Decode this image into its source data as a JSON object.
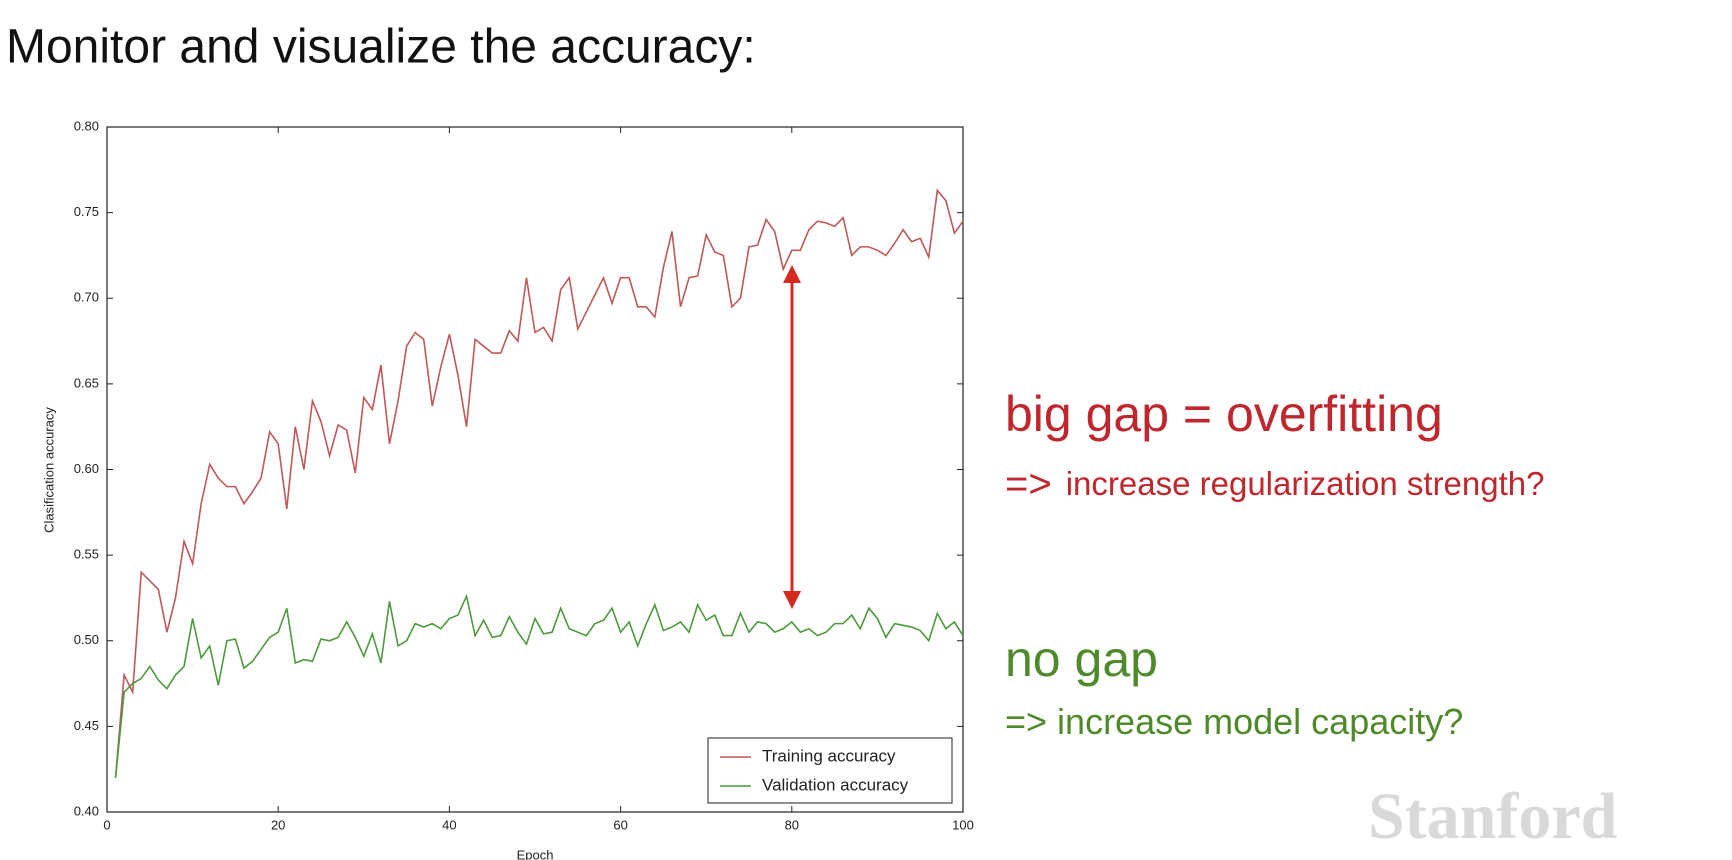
{
  "slide": {
    "heading": "Monitor and visualize the accuracy:",
    "notes": [
      {
        "title": "big gap = overfitting",
        "arrow": "=>",
        "text": "increase regularization strength?"
      },
      {
        "title": "no gap",
        "arrow": "=>",
        "text": "increase model capacity?"
      }
    ],
    "watermark": "Stanford"
  },
  "chart_data": {
    "type": "line",
    "xlabel": "Epoch",
    "ylabel": "Clasification accuracy",
    "x": [
      1,
      2,
      3,
      4,
      5,
      6,
      7,
      8,
      9,
      10,
      11,
      12,
      13,
      14,
      15,
      16,
      17,
      18,
      19,
      20,
      21,
      22,
      23,
      24,
      25,
      26,
      27,
      28,
      29,
      30,
      31,
      32,
      33,
      34,
      35,
      36,
      37,
      38,
      39,
      40,
      41,
      42,
      43,
      44,
      45,
      46,
      47,
      48,
      49,
      50,
      51,
      52,
      53,
      54,
      55,
      56,
      57,
      58,
      59,
      60,
      61,
      62,
      63,
      64,
      65,
      66,
      67,
      68,
      69,
      70,
      71,
      72,
      73,
      74,
      75,
      76,
      77,
      78,
      79,
      80,
      81,
      82,
      83,
      84,
      85,
      86,
      87,
      88,
      89,
      90,
      91,
      92,
      93,
      94,
      95,
      96,
      97,
      98,
      99,
      100
    ],
    "series": [
      {
        "name": "Training accuracy",
        "color": "#c0585a",
        "values": [
          0.42,
          0.48,
          0.47,
          0.54,
          0.535,
          0.53,
          0.505,
          0.525,
          0.558,
          0.545,
          0.58,
          0.603,
          0.595,
          0.59,
          0.59,
          0.58,
          0.587,
          0.595,
          0.622,
          0.615,
          0.577,
          0.625,
          0.6,
          0.64,
          0.628,
          0.608,
          0.626,
          0.623,
          0.598,
          0.642,
          0.635,
          0.661,
          0.615,
          0.64,
          0.672,
          0.68,
          0.676,
          0.637,
          0.66,
          0.679,
          0.655,
          0.625,
          0.676,
          0.672,
          0.668,
          0.668,
          0.681,
          0.675,
          0.712,
          0.68,
          0.683,
          0.675,
          0.705,
          0.712,
          0.682,
          0.692,
          0.702,
          0.712,
          0.697,
          0.712,
          0.712,
          0.695,
          0.695,
          0.689,
          0.718,
          0.739,
          0.695,
          0.712,
          0.713,
          0.737,
          0.727,
          0.725,
          0.695,
          0.7,
          0.73,
          0.731,
          0.746,
          0.739,
          0.717,
          0.728,
          0.728,
          0.74,
          0.745,
          0.744,
          0.742,
          0.747,
          0.725,
          0.73,
          0.73,
          0.728,
          0.725,
          0.732,
          0.74,
          0.733,
          0.735,
          0.724,
          0.763,
          0.757,
          0.738,
          0.745
        ]
      },
      {
        "name": "Validation accuracy",
        "color": "#4c9a3c",
        "values": [
          0.42,
          0.47,
          0.475,
          0.478,
          0.485,
          0.477,
          0.472,
          0.48,
          0.485,
          0.513,
          0.49,
          0.497,
          0.474,
          0.5,
          0.501,
          0.484,
          0.488,
          0.495,
          0.502,
          0.505,
          0.519,
          0.487,
          0.489,
          0.488,
          0.501,
          0.5,
          0.502,
          0.511,
          0.502,
          0.491,
          0.504,
          0.487,
          0.523,
          0.497,
          0.5,
          0.51,
          0.508,
          0.51,
          0.507,
          0.513,
          0.515,
          0.526,
          0.503,
          0.512,
          0.502,
          0.503,
          0.514,
          0.505,
          0.498,
          0.513,
          0.504,
          0.505,
          0.519,
          0.507,
          0.505,
          0.503,
          0.51,
          0.512,
          0.519,
          0.505,
          0.511,
          0.497,
          0.51,
          0.521,
          0.506,
          0.508,
          0.511,
          0.505,
          0.521,
          0.512,
          0.515,
          0.503,
          0.503,
          0.516,
          0.505,
          0.511,
          0.51,
          0.505,
          0.507,
          0.511,
          0.505,
          0.507,
          0.503,
          0.505,
          0.51,
          0.51,
          0.515,
          0.507,
          0.519,
          0.513,
          0.502,
          0.51,
          0.509,
          0.508,
          0.506,
          0.5,
          0.516,
          0.507,
          0.511,
          0.503
        ]
      }
    ],
    "xlim": [
      0,
      100
    ],
    "xticks": [
      0,
      20,
      40,
      60,
      80,
      100
    ],
    "ylim": [
      0.4,
      0.8
    ],
    "yticks": [
      {
        "value": 0.4,
        "label": "0.40"
      },
      0.45,
      {
        "value": 0.5,
        "label": "0.50"
      },
      0.55,
      {
        "value": 0.6,
        "label": "0.60"
      },
      0.65,
      {
        "value": 0.7,
        "label": "0.70"
      },
      0.75,
      {
        "value": 0.8,
        "label": "0.80"
      }
    ],
    "grid": false,
    "legend": "lower right"
  }
}
